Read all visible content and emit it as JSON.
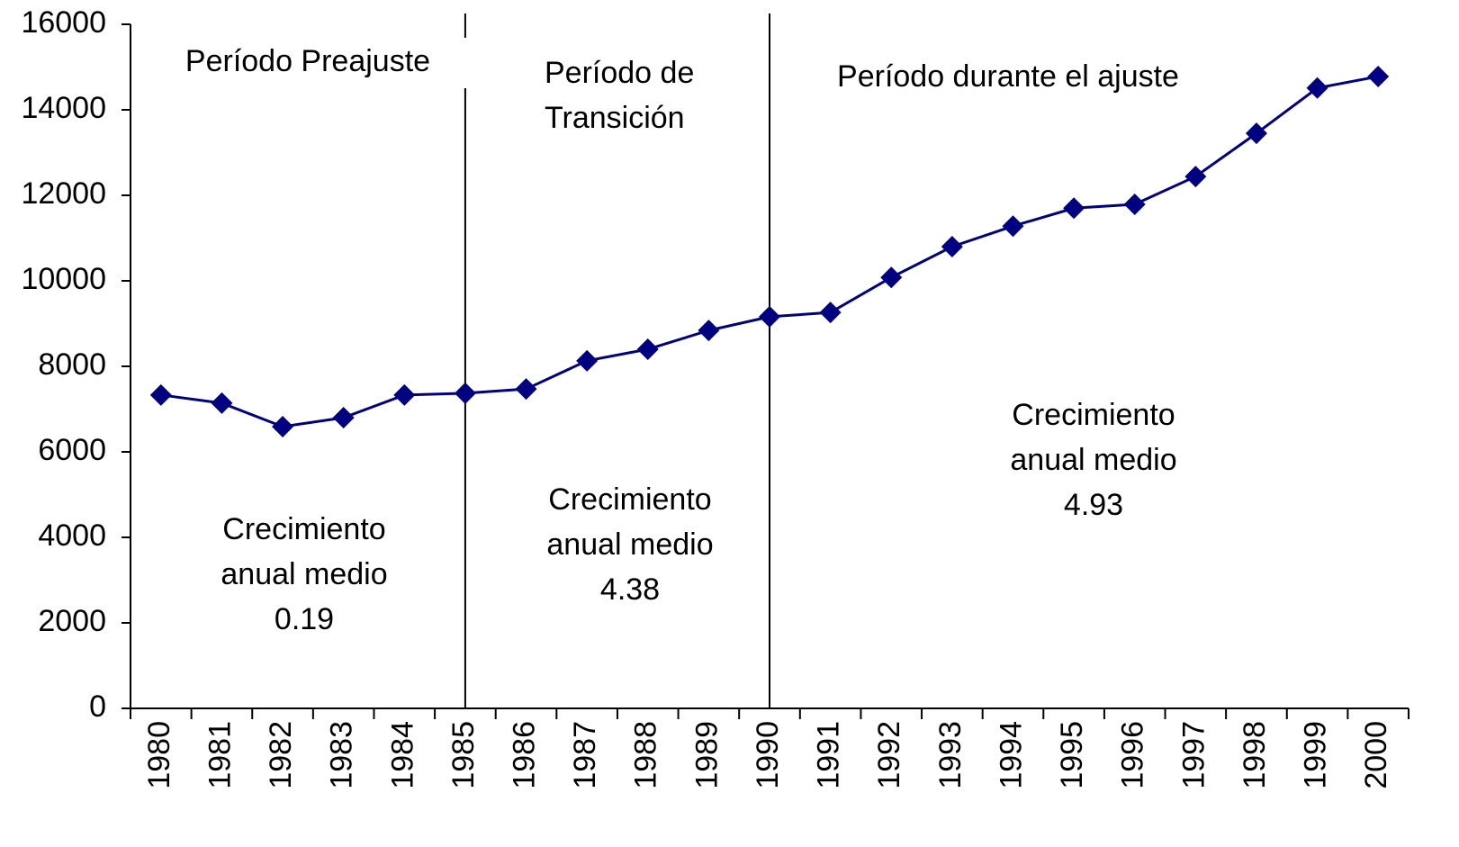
{
  "chart_data": {
    "type": "line",
    "categories": [
      "1980",
      "1981",
      "1982",
      "1983",
      "1984",
      "1985",
      "1986",
      "1987",
      "1988",
      "1989",
      "1990",
      "1991",
      "1992",
      "1993",
      "1994",
      "1995",
      "1996",
      "1997",
      "1998",
      "1999",
      "2000"
    ],
    "series": [
      {
        "color": "#000080",
        "values": [
          7330,
          7140,
          6590,
          6800,
          7330,
          7370,
          7470,
          8130,
          8400,
          8840,
          9160,
          9260,
          10080,
          10800,
          11280,
          11700,
          11790,
          12440,
          13450,
          14510,
          14780
        ]
      }
    ],
    "ylim": [
      0,
      16000
    ],
    "yticks": [
      0,
      2000,
      4000,
      6000,
      8000,
      10000,
      12000,
      14000,
      16000
    ],
    "grid": false,
    "annotations": [
      {
        "lines": [
          "Período Preajuste"
        ]
      },
      {
        "lines": [
          "Período de",
          "Transición"
        ]
      },
      {
        "lines": [
          "Período durante el ajuste"
        ]
      },
      {
        "lines": [
          "Crecimiento",
          "anual medio",
          "0.19"
        ]
      },
      {
        "lines": [
          "Crecimiento",
          "anual medio",
          "4.38"
        ]
      },
      {
        "lines": [
          "Crecimiento",
          "anual medio",
          "4.93"
        ]
      }
    ]
  }
}
